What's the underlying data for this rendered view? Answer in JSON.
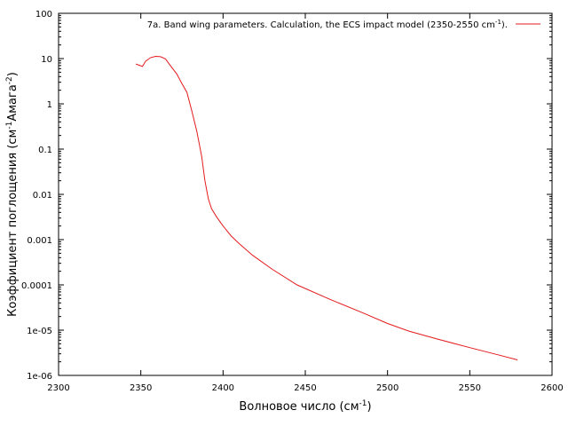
{
  "chart_data": {
    "type": "line",
    "title": "",
    "xlabel": "Волновое число (см",
    "xlabel_sup": "-1",
    "xlabel_end": ")",
    "ylabel": "Коэффициент поглощения (см",
    "ylabel_sup1": "-1",
    "ylabel_mid": "Амага",
    "ylabel_sup2": "-2",
    "ylabel_end": ")",
    "xlim": [
      2300,
      2600
    ],
    "ylim": [
      1e-06,
      100
    ],
    "y_scale": "log",
    "grid": false,
    "legend_position": "top-right",
    "x_ticks": [
      "2300",
      "2350",
      "2400",
      "2450",
      "2500",
      "2550",
      "2600"
    ],
    "y_ticks": [
      "1e-06",
      "1e-05",
      "0.0001",
      "0.001",
      "0.01",
      "0.1",
      "1",
      "10",
      "100"
    ],
    "series": [
      {
        "name": "7a. Band wing parameters. Calculation, the ECS impact model (2350-2550 cm",
        "name_sup": "-1",
        "name_end": ").",
        "color": "#e41a1c",
        "x": [
          2347,
          2351,
          2353,
          2356,
          2359,
          2362,
          2365,
          2368,
          2372,
          2375,
          2378,
          2381,
          2384,
          2387,
          2389,
          2391,
          2393,
          2396,
          2400,
          2405,
          2410,
          2418,
          2430,
          2445,
          2465,
          2485,
          2500,
          2513,
          2530,
          2550,
          2568,
          2579
        ],
        "y": [
          7.6,
          6.7,
          8.8,
          10.5,
          11.2,
          11.0,
          9.8,
          7.0,
          4.5,
          2.8,
          1.8,
          0.7,
          0.25,
          0.07,
          0.02,
          0.008,
          0.0048,
          0.0032,
          0.002,
          0.0012,
          0.0008,
          0.00045,
          0.00022,
          0.0001,
          4.8e-05,
          2.4e-05,
          1.4e-05,
          9.5e-06,
          6.4e-06,
          4.1e-06,
          2.8e-06,
          2.2e-06
        ]
      }
    ]
  }
}
